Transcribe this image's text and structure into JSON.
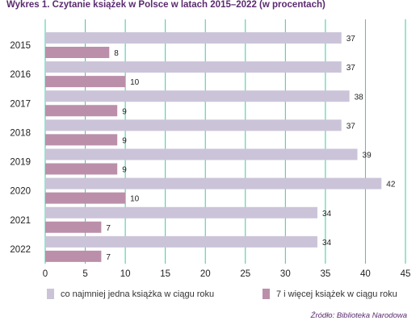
{
  "title": "Wykres 1. Czytanie książek w Polsce w latach 2015–2022 (w procentach)",
  "source": "Źródło: Biblioteka Narodowa",
  "colors": {
    "series1": "#cbc4d9",
    "series2": "#bb8fa9",
    "grid": "#3ec9a0",
    "axis_text": "#222222",
    "title": "#5a2a6e"
  },
  "chart_data": {
    "type": "bar",
    "orientation": "horizontal",
    "categories": [
      "2015",
      "2016",
      "2017",
      "2018",
      "2019",
      "2020",
      "2021",
      "2022"
    ],
    "series": [
      {
        "name": "co najmniej jedna książka w ciągu roku",
        "values": [
          37,
          37,
          38,
          37,
          39,
          42,
          34,
          34
        ]
      },
      {
        "name": "7 i więcej książek w ciągu roku",
        "values": [
          8,
          10,
          9,
          9,
          9,
          10,
          7,
          7
        ]
      }
    ],
    "xlim": [
      0,
      45
    ],
    "xticks": [
      0,
      5,
      10,
      15,
      20,
      25,
      30,
      35,
      40,
      45
    ],
    "grid": true,
    "legend_position": "bottom"
  }
}
